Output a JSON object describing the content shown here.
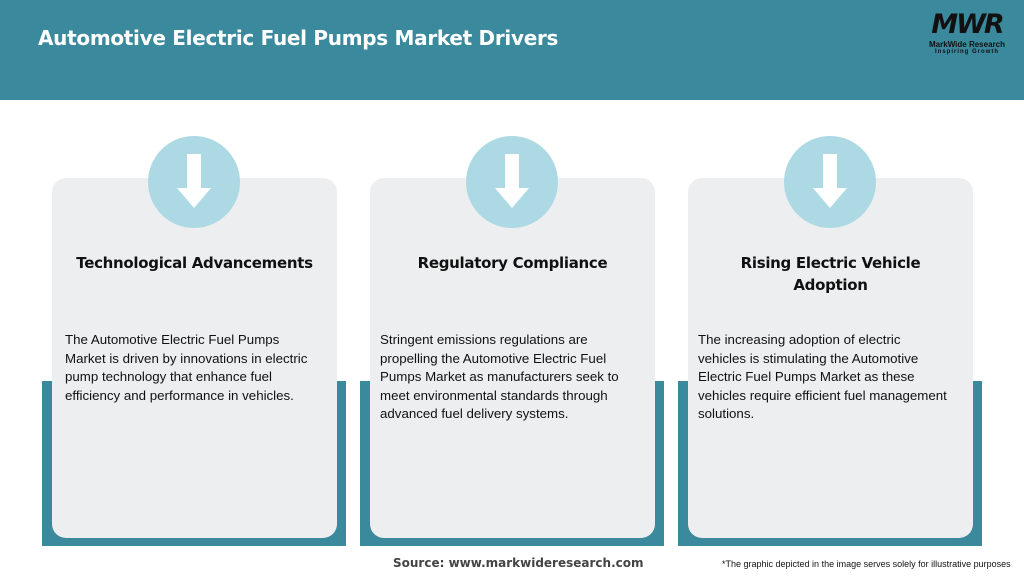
{
  "header": {
    "title": "Automotive Electric Fuel Pumps Market Drivers"
  },
  "logo": {
    "mark": "MWR",
    "name": "MarkWide Research",
    "tagline": "Inspiring Growth"
  },
  "colors": {
    "header": "#3a899c",
    "card": "#eceeef",
    "circle": "#acd9e4",
    "arrow": "#ffffff"
  },
  "cards": [
    {
      "icon": "down-arrow-icon",
      "title": "Technological Advancements",
      "text": "The Automotive Electric Fuel Pumps Market is driven by innovations in electric pump technology that enhance fuel efficiency and performance in vehicles."
    },
    {
      "icon": "down-arrow-icon",
      "title": "Regulatory Compliance",
      "text": "Stringent emissions regulations are propelling the Automotive Electric Fuel Pumps Market as manufacturers seek to meet environmental standards through advanced fuel delivery systems."
    },
    {
      "icon": "down-arrow-icon",
      "title": "Rising Electric Vehicle Adoption",
      "text": "The increasing adoption of electric vehicles is stimulating the Automotive Electric Fuel Pumps Market as these vehicles require efficient fuel management solutions."
    }
  ],
  "footer": {
    "source": "Source: www.markwideresearch.com",
    "note": "*The graphic depicted in the image serves solely for illustrative purposes"
  }
}
